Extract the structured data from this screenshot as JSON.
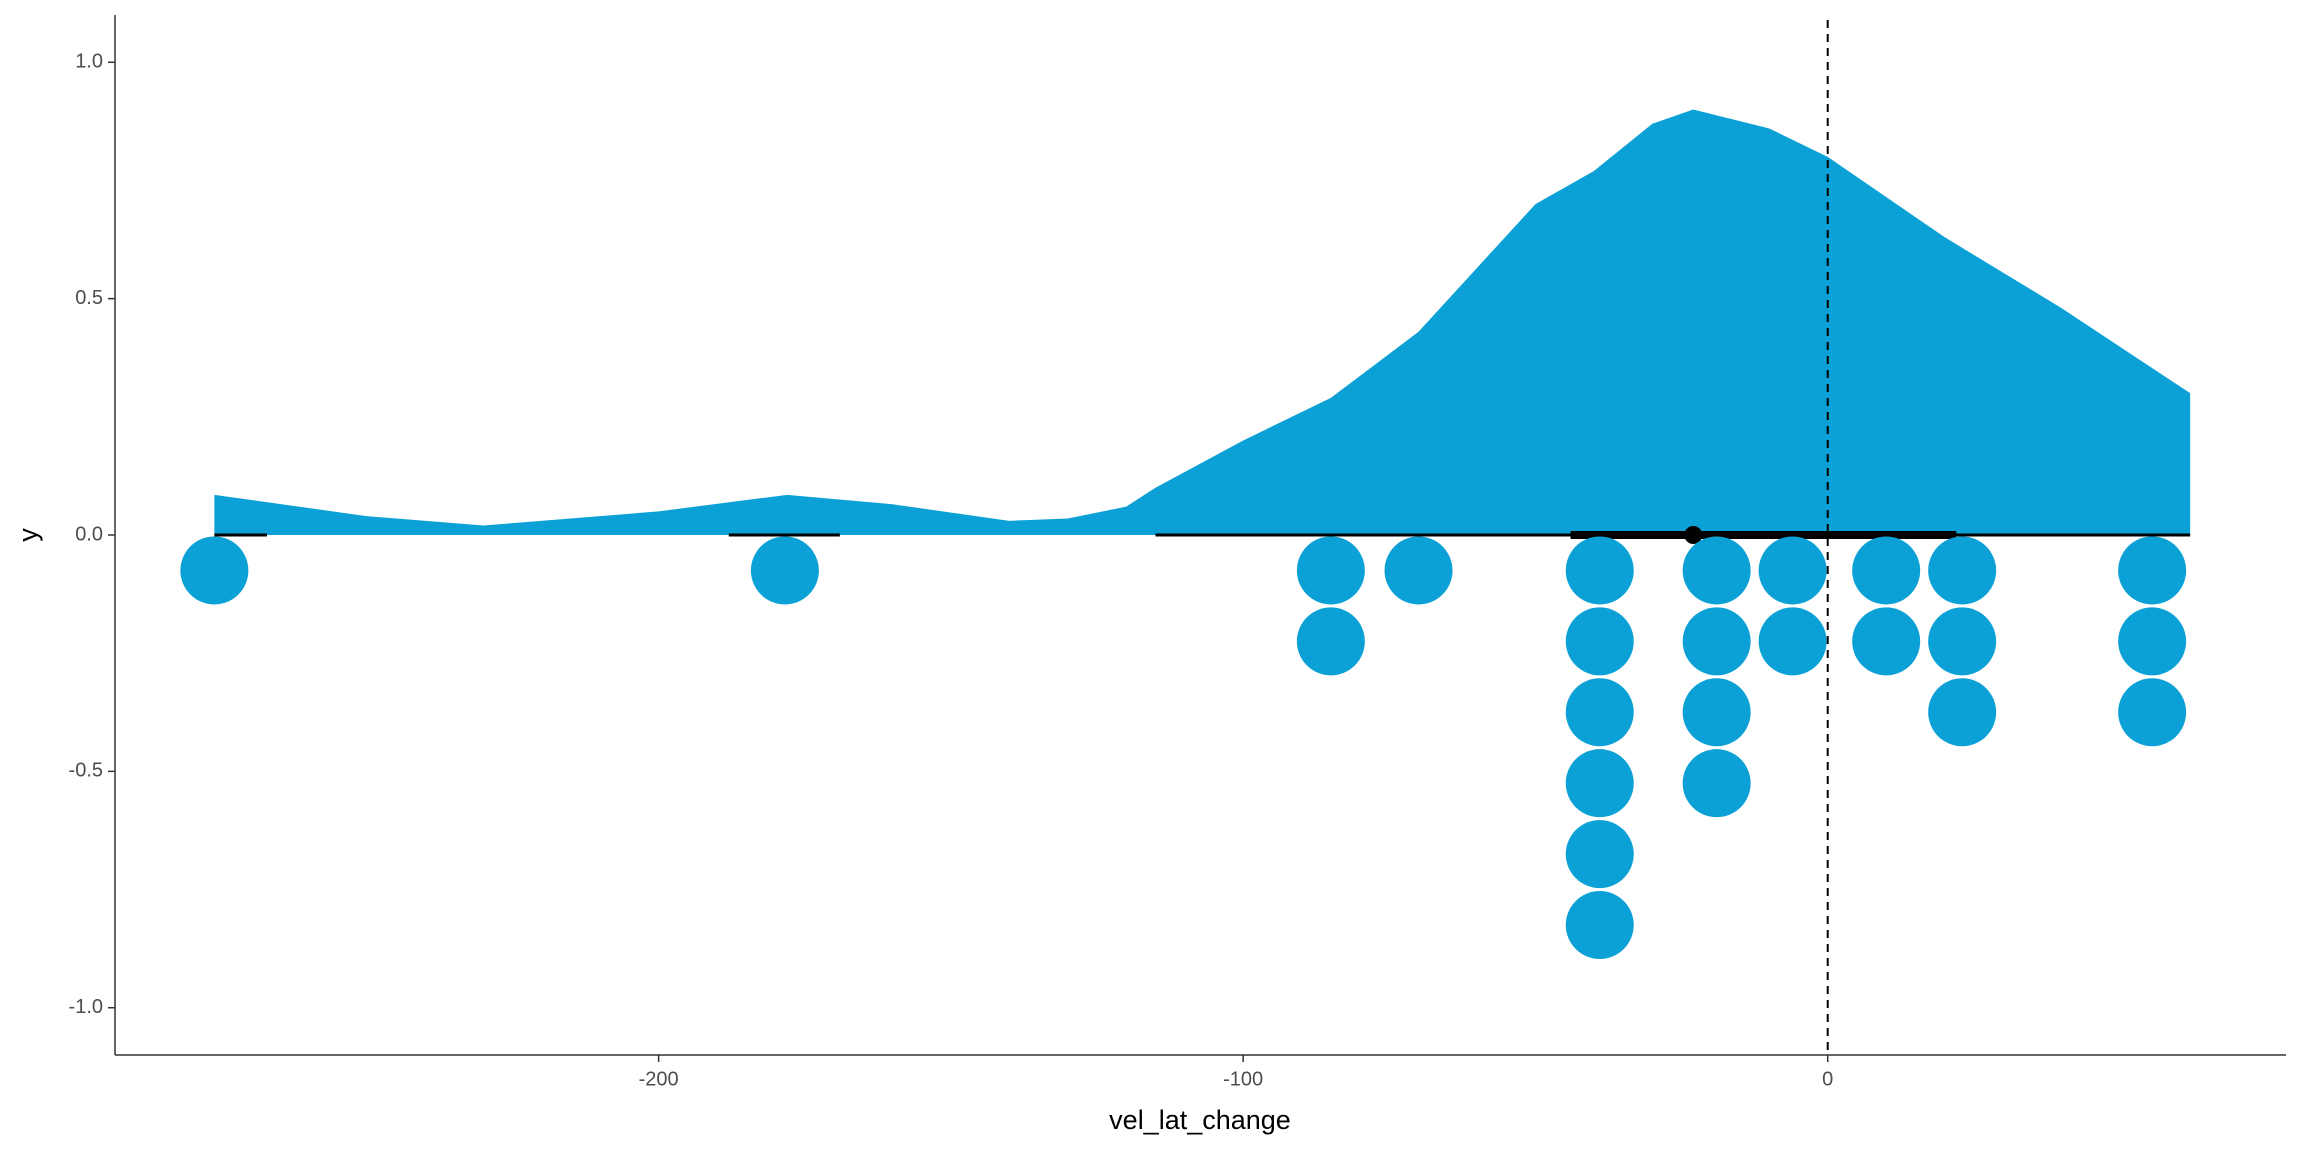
{
  "chart_data": {
    "type": "raincloud",
    "x_label": "vel_lat_change",
    "y_label": "y",
    "xlim": [
      -293,
      78.4
    ],
    "ylim": [
      -1.1,
      1.1
    ],
    "xticks": [
      -200,
      -100,
      0
    ],
    "yticks": [
      {
        "value": 1,
        "label": "1.0"
      },
      0.5,
      {
        "value": 0,
        "label": "0.0"
      },
      -0.5,
      {
        "value": -1,
        "label": "-1.0"
      }
    ],
    "color": "#0ba1d6",
    "reference_x": 0,
    "density": {
      "x": [
        -276,
        -250,
        -230,
        -200,
        -178,
        -160,
        -140,
        -130,
        -120,
        -115,
        -100,
        -85,
        -70,
        -50,
        -40,
        -30,
        -23,
        -10,
        0,
        20,
        40,
        62
      ],
      "y": [
        0.085,
        0.04,
        0.02,
        0.05,
        0.085,
        0.065,
        0.03,
        0.035,
        0.06,
        0.1,
        0.2,
        0.29,
        0.43,
        0.7,
        0.77,
        0.87,
        0.9,
        0.86,
        0.8,
        0.63,
        0.48,
        0.3
      ]
    },
    "dots": {
      "x": [
        -276,
        -178.4,
        -85,
        -70,
        -39,
        -19,
        -6,
        10,
        23,
        55.5
      ],
      "counts": [
        1,
        1,
        2,
        1,
        6,
        4,
        2,
        2,
        3,
        3
      ]
    },
    "interval": {
      "point": -23,
      "inner": [
        -44,
        22
      ],
      "outer": [
        [
          -276,
          -267
        ],
        [
          -188,
          -169
        ],
        [
          -115,
          62
        ]
      ]
    }
  }
}
